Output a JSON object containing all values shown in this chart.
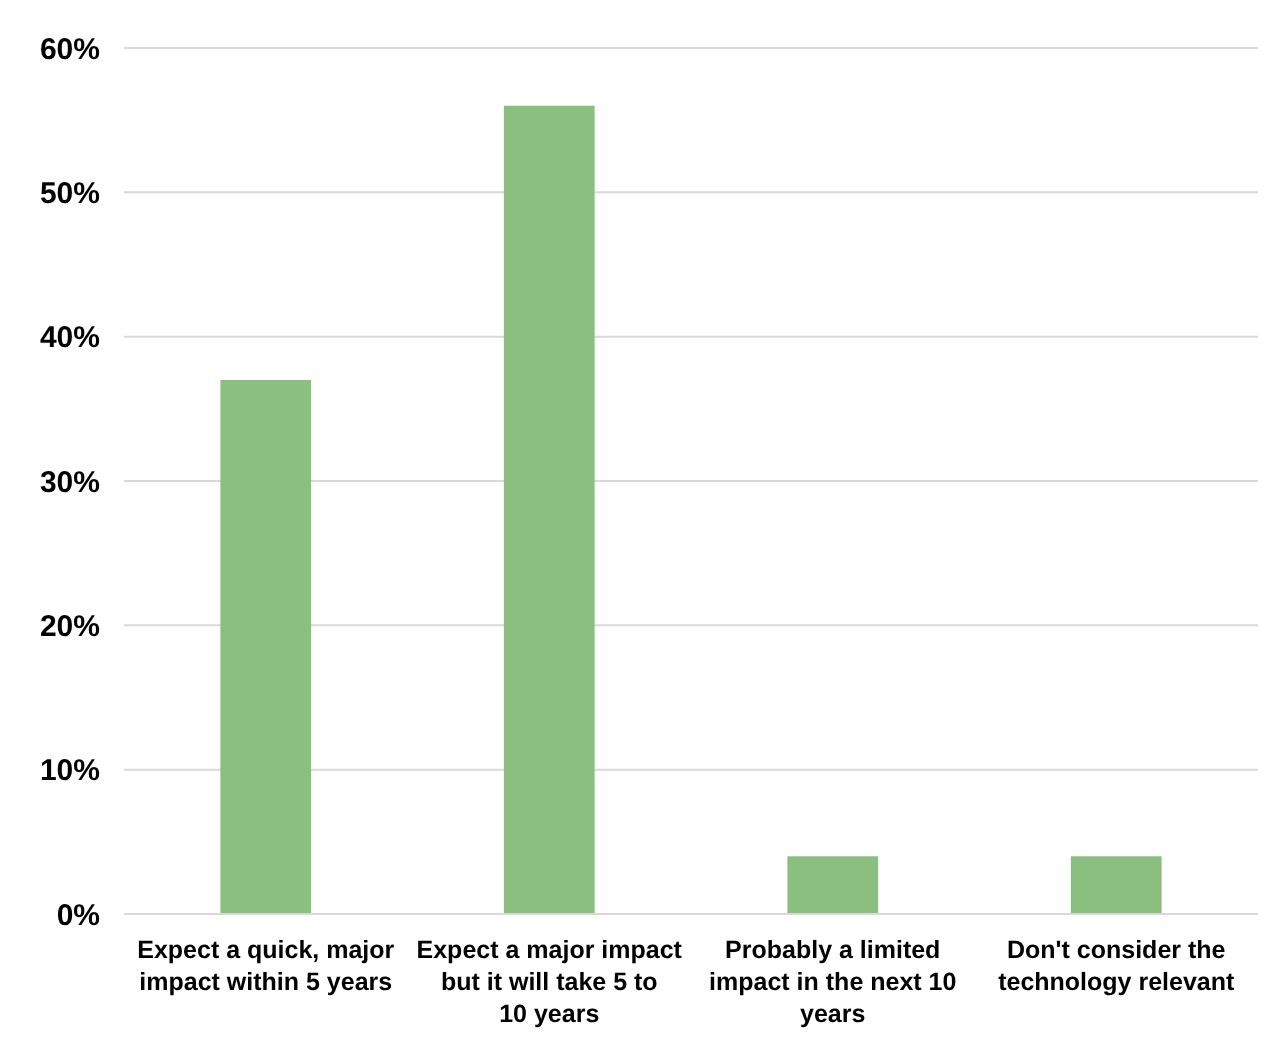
{
  "chart_data": {
    "type": "bar",
    "categories": [
      "Expect a quick, major impact within 5 years",
      "Expect a major impact but it will take 5 to 10 years",
      "Probably a limited impact in the next 10 years",
      "Don't consider the technology relevant"
    ],
    "values": [
      37,
      56,
      4,
      4
    ],
    "color": "#8abf80",
    "ylim": [
      0,
      60
    ],
    "yticks": [
      {
        "value": 0,
        "label": "0%"
      },
      {
        "value": 10,
        "label": "10%"
      },
      {
        "value": 20,
        "label": "20%"
      },
      {
        "value": 30,
        "label": "30%"
      },
      {
        "value": 40,
        "label": "40%"
      },
      {
        "value": 50,
        "label": "50%"
      },
      {
        "value": 60,
        "label": "60%"
      }
    ],
    "grid": true
  }
}
